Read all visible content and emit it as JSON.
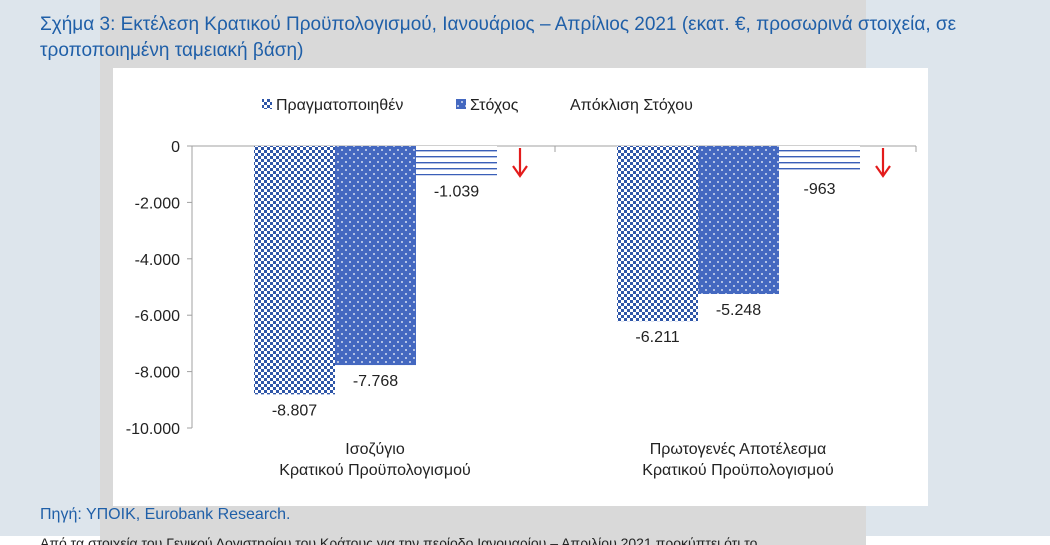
{
  "page": {
    "title": "Σχήμα 3: Εκτέλεση Κρατικού Προϋπολογισμού, Ιανουάριος – Απρίλιος 2021 (εκατ. €, προσωρινά στοιχεία, σε τροποποιημένη ταμειακή βάση)",
    "source": "Πηγή: ΥΠΟΙΚ, Eurobank Research.",
    "bottom_text": "Από τα στοιχεία του Γενικού Λογιστηρίου του Κράτους για την περίοδο Ιανουαρίου – Απριλίου 2021 προκύπτει ότι το"
  },
  "colors": {
    "actual": "#2f56a8",
    "target": "#4468c0",
    "deviation": "#3a5fb8",
    "arrow": "#e31b1b",
    "axis": "#a0a0a0"
  },
  "chart_data": {
    "type": "bar",
    "title": "",
    "xlabel": "",
    "ylabel": "",
    "ylim": [
      -10000,
      0
    ],
    "yticks": [
      0,
      -2000,
      -4000,
      -6000,
      -8000,
      -10000
    ],
    "ytick_labels": [
      "0",
      "-2.000",
      "-4.000",
      "-6.000",
      "-8.000",
      "-10.000"
    ],
    "categories": [
      [
        "Ισοζύγιο",
        "Κρατικού Προϋπολογισμού"
      ],
      [
        "Πρωτογενές Αποτέλεσμα",
        "Κρατικού Προϋπολογισμού"
      ]
    ],
    "legend_position": "top",
    "grid": false,
    "series": [
      {
        "name": "Πραγματοποιηθέν",
        "pattern": "checker",
        "values": [
          -8807,
          -6211
        ],
        "labels": [
          "-8.807",
          "-6.211"
        ]
      },
      {
        "name": "Στόχος",
        "pattern": "dots",
        "values": [
          -7768,
          -5248
        ],
        "labels": [
          "-7.768",
          "-5.248"
        ]
      },
      {
        "name": "Απόκλιση Στόχου",
        "pattern": "hlines",
        "values": [
          -1039,
          -963
        ],
        "labels": [
          "-1.039",
          "-963"
        ]
      }
    ],
    "annotations": [
      {
        "type": "down-arrow",
        "category": 0
      },
      {
        "type": "down-arrow",
        "category": 1
      }
    ]
  }
}
